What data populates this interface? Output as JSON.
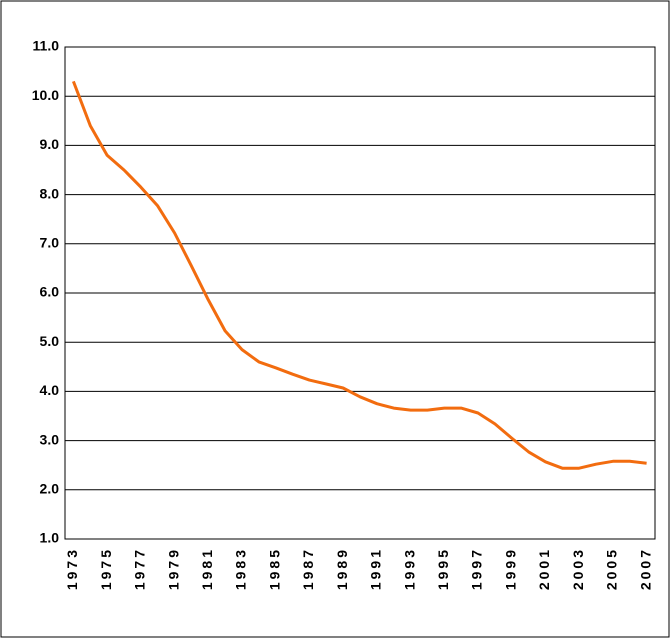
{
  "chart_data": {
    "type": "line",
    "categories": [
      "1973",
      null,
      "1975",
      null,
      "1977",
      null,
      "1979",
      null,
      "1981",
      null,
      "1983",
      null,
      "1985",
      null,
      "1987",
      null,
      "1989",
      null,
      "1991",
      null,
      "1993",
      null,
      "1995",
      null,
      "1997",
      null,
      "1999",
      null,
      "2001",
      null,
      "2003",
      null,
      "2005",
      null,
      "2007"
    ],
    "values": [
      10.3,
      9.4,
      8.8,
      8.5,
      8.15,
      7.77,
      7.22,
      6.55,
      5.86,
      5.23,
      4.85,
      4.6,
      4.48,
      4.35,
      4.23,
      4.15,
      4.07,
      3.89,
      3.75,
      3.66,
      3.62,
      3.62,
      3.66,
      3.66,
      3.56,
      3.34,
      3.05,
      2.77,
      2.57,
      2.44,
      2.44,
      2.52,
      2.58,
      2.58,
      2.54
    ],
    "color": "#f26c0f",
    "ylim": [
      1,
      11
    ],
    "yticks": [
      {
        "value": 1,
        "label": "1.0"
      },
      {
        "value": 2,
        "label": "2.0"
      },
      {
        "value": 3,
        "label": "3.0"
      },
      {
        "value": 4,
        "label": "4.0"
      },
      {
        "value": 5,
        "label": "5.0"
      },
      {
        "value": 6,
        "label": "6.0"
      },
      {
        "value": 7,
        "label": "7.0"
      },
      {
        "value": 8,
        "label": "8.0"
      },
      {
        "value": 9,
        "label": "9.0"
      },
      {
        "value": 10,
        "label": "10.0"
      },
      {
        "value": 11,
        "label": "11.0"
      }
    ],
    "grid": true
  }
}
